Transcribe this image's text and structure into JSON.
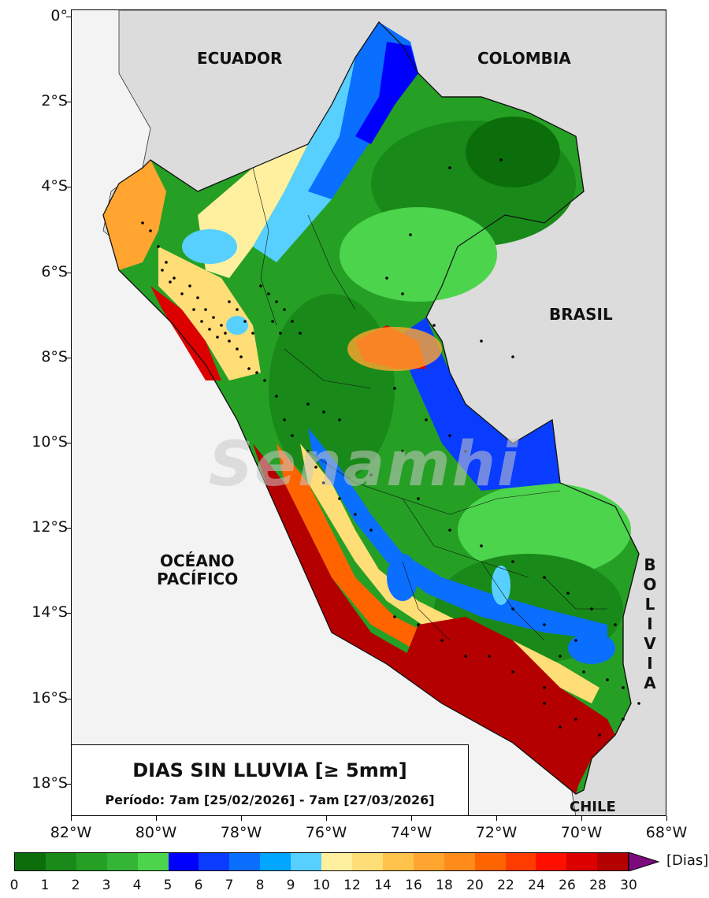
{
  "title": "DIAS SIN LLUVIA [≥ 5mm]",
  "subtitle": "Período: 7am [25/02/2026] - 7am [27/03/2026]",
  "watermark": "Senamhi",
  "countries": {
    "ecuador": "ECUADOR",
    "colombia": "COLOMBIA",
    "brasil": "BRASIL",
    "chile": "CHILE",
    "oceano_1": "OCÉANO",
    "oceano_2": "PACÍFICO",
    "bolivia": [
      "B",
      "O",
      "L",
      "I",
      "V",
      "I",
      "A"
    ]
  },
  "axes": {
    "y_ticks": [
      "0°",
      "2°S",
      "4°S",
      "6°S",
      "8°S",
      "10°S",
      "12°S",
      "14°S",
      "16°S",
      "18°S"
    ],
    "x_ticks": [
      "82°W",
      "80°W",
      "78°W",
      "76°W",
      "74°W",
      "72°W",
      "70°W",
      "68°W"
    ],
    "lat_range": [
      0,
      -18.8
    ],
    "lon_range": [
      -82,
      -68
    ]
  },
  "colorbar": {
    "unit": "[Dias]",
    "labels": [
      "0",
      "1",
      "2",
      "3",
      "4",
      "5",
      "6",
      "7",
      "8",
      "9",
      "10",
      "12",
      "14",
      "16",
      "18",
      "20",
      "22",
      "24",
      "26",
      "28",
      "30"
    ],
    "colors": [
      "#0b6e0b",
      "#198a19",
      "#25a025",
      "#35b535",
      "#4cd44c",
      "#0000ff",
      "#0a3cff",
      "#0a6eff",
      "#00a6ff",
      "#57d0ff",
      "#fff0a0",
      "#ffdd77",
      "#ffc24a",
      "#ffa530",
      "#ff8c1a",
      "#ff6400",
      "#ff3c00",
      "#ff0f00",
      "#dc0000",
      "#b40000"
    ],
    "extend_color": "#7d0a7d"
  },
  "colors": {
    "background_land": "#dcdcdc",
    "ocean": "#f3f3f3",
    "station": "#000000"
  }
}
